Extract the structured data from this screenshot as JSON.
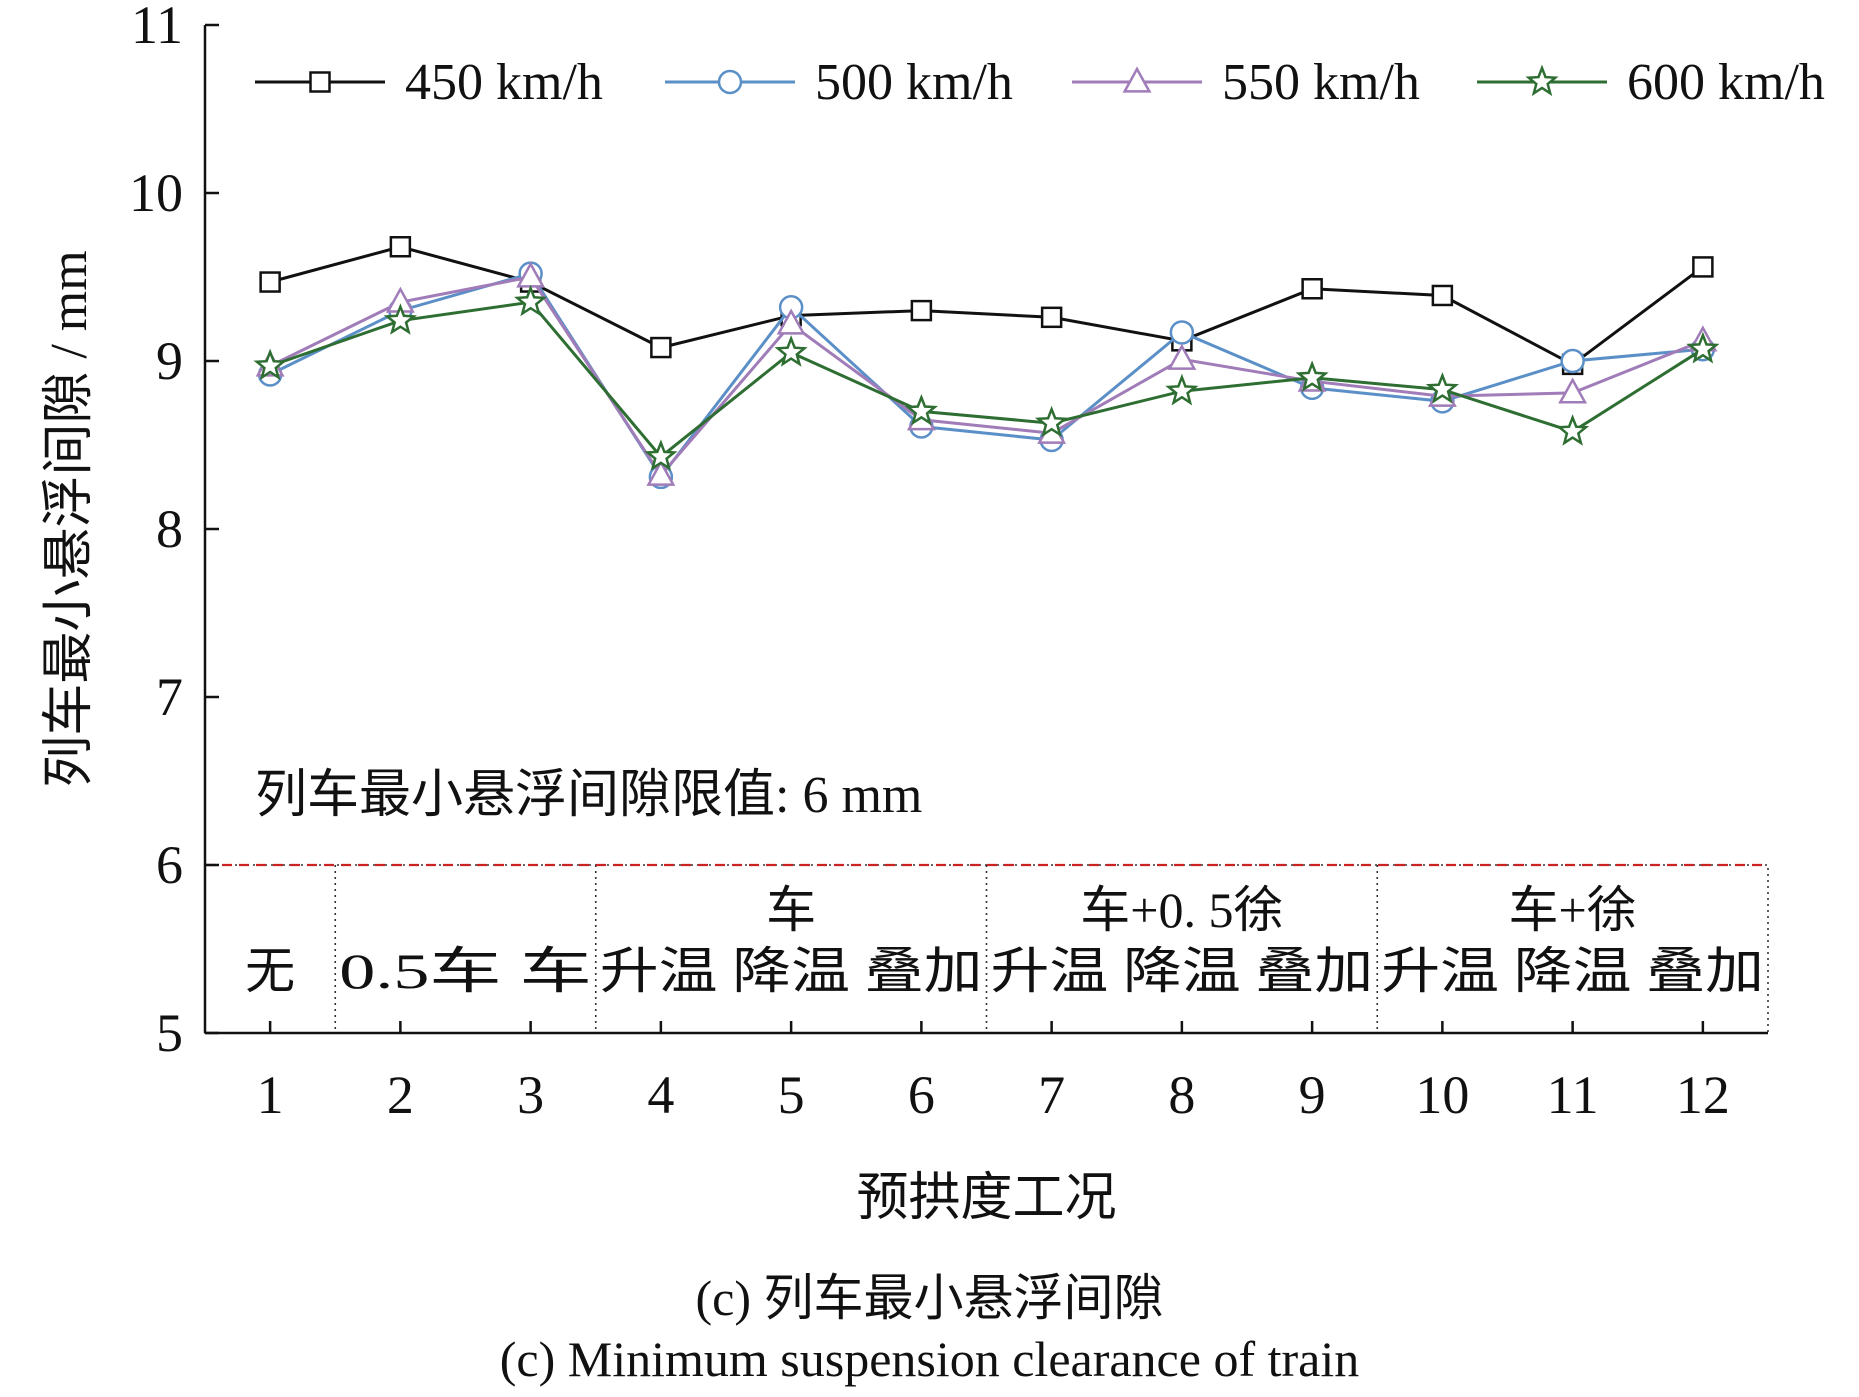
{
  "chart_data": {
    "type": "line",
    "xlabel": "预拱度工况",
    "ylabel": "列车最小悬浮间隙 / mm",
    "categories": [
      1,
      2,
      3,
      4,
      5,
      6,
      7,
      8,
      9,
      10,
      11,
      12
    ],
    "x_tick_labels": [
      "1",
      "2",
      "3",
      "4",
      "5",
      "6",
      "7",
      "8",
      "9",
      "10",
      "11",
      "12"
    ],
    "ylim": [
      5,
      11
    ],
    "y_ticks": [
      5,
      6,
      7,
      8,
      9,
      10,
      11
    ],
    "grid": false,
    "legend_position": "top",
    "series": [
      {
        "name": "450 km/h",
        "color": "#111111",
        "marker": "square",
        "values": [
          9.47,
          9.68,
          9.47,
          9.08,
          9.27,
          9.3,
          9.26,
          9.12,
          9.43,
          9.39,
          8.98,
          9.56
        ]
      },
      {
        "name": "500 km/h",
        "color": "#5b8fc7",
        "marker": "circle",
        "values": [
          8.92,
          9.3,
          9.52,
          8.31,
          9.32,
          8.61,
          8.53,
          9.17,
          8.84,
          8.76,
          9.0,
          9.07
        ]
      },
      {
        "name": "550 km/h",
        "color": "#a07cb8",
        "marker": "triangle",
        "values": [
          8.97,
          9.35,
          9.5,
          8.32,
          9.22,
          8.65,
          8.57,
          9.01,
          8.88,
          8.79,
          8.81,
          9.12
        ]
      },
      {
        "name": "600 km/h",
        "color": "#2e6e32",
        "marker": "star",
        "values": [
          8.97,
          9.24,
          9.35,
          8.43,
          9.05,
          8.7,
          8.63,
          8.82,
          8.9,
          8.83,
          8.58,
          9.07
        ]
      }
    ],
    "limit_line": {
      "value": 6,
      "color": "#cc2222",
      "label": "列车最小悬浮间隙限值: 6 mm"
    },
    "band_groups": [
      {
        "from": 1,
        "to": 1,
        "top": "",
        "bottom": "无"
      },
      {
        "from": 2,
        "to": 3,
        "top": "",
        "bottom": "0.5车  车"
      },
      {
        "from": 4,
        "to": 6,
        "top": "车",
        "bottom": "升温 降温 叠加"
      },
      {
        "from": 7,
        "to": 9,
        "top": "车+0. 5徐",
        "bottom": "升温 降温 叠加"
      },
      {
        "from": 10,
        "to": 12,
        "top": "车+徐",
        "bottom": "升温 降温 叠加"
      }
    ]
  },
  "caption": {
    "line1": "(c) 列车最小悬浮间隙",
    "line2": "(c) Minimum suspension clearance of train"
  }
}
